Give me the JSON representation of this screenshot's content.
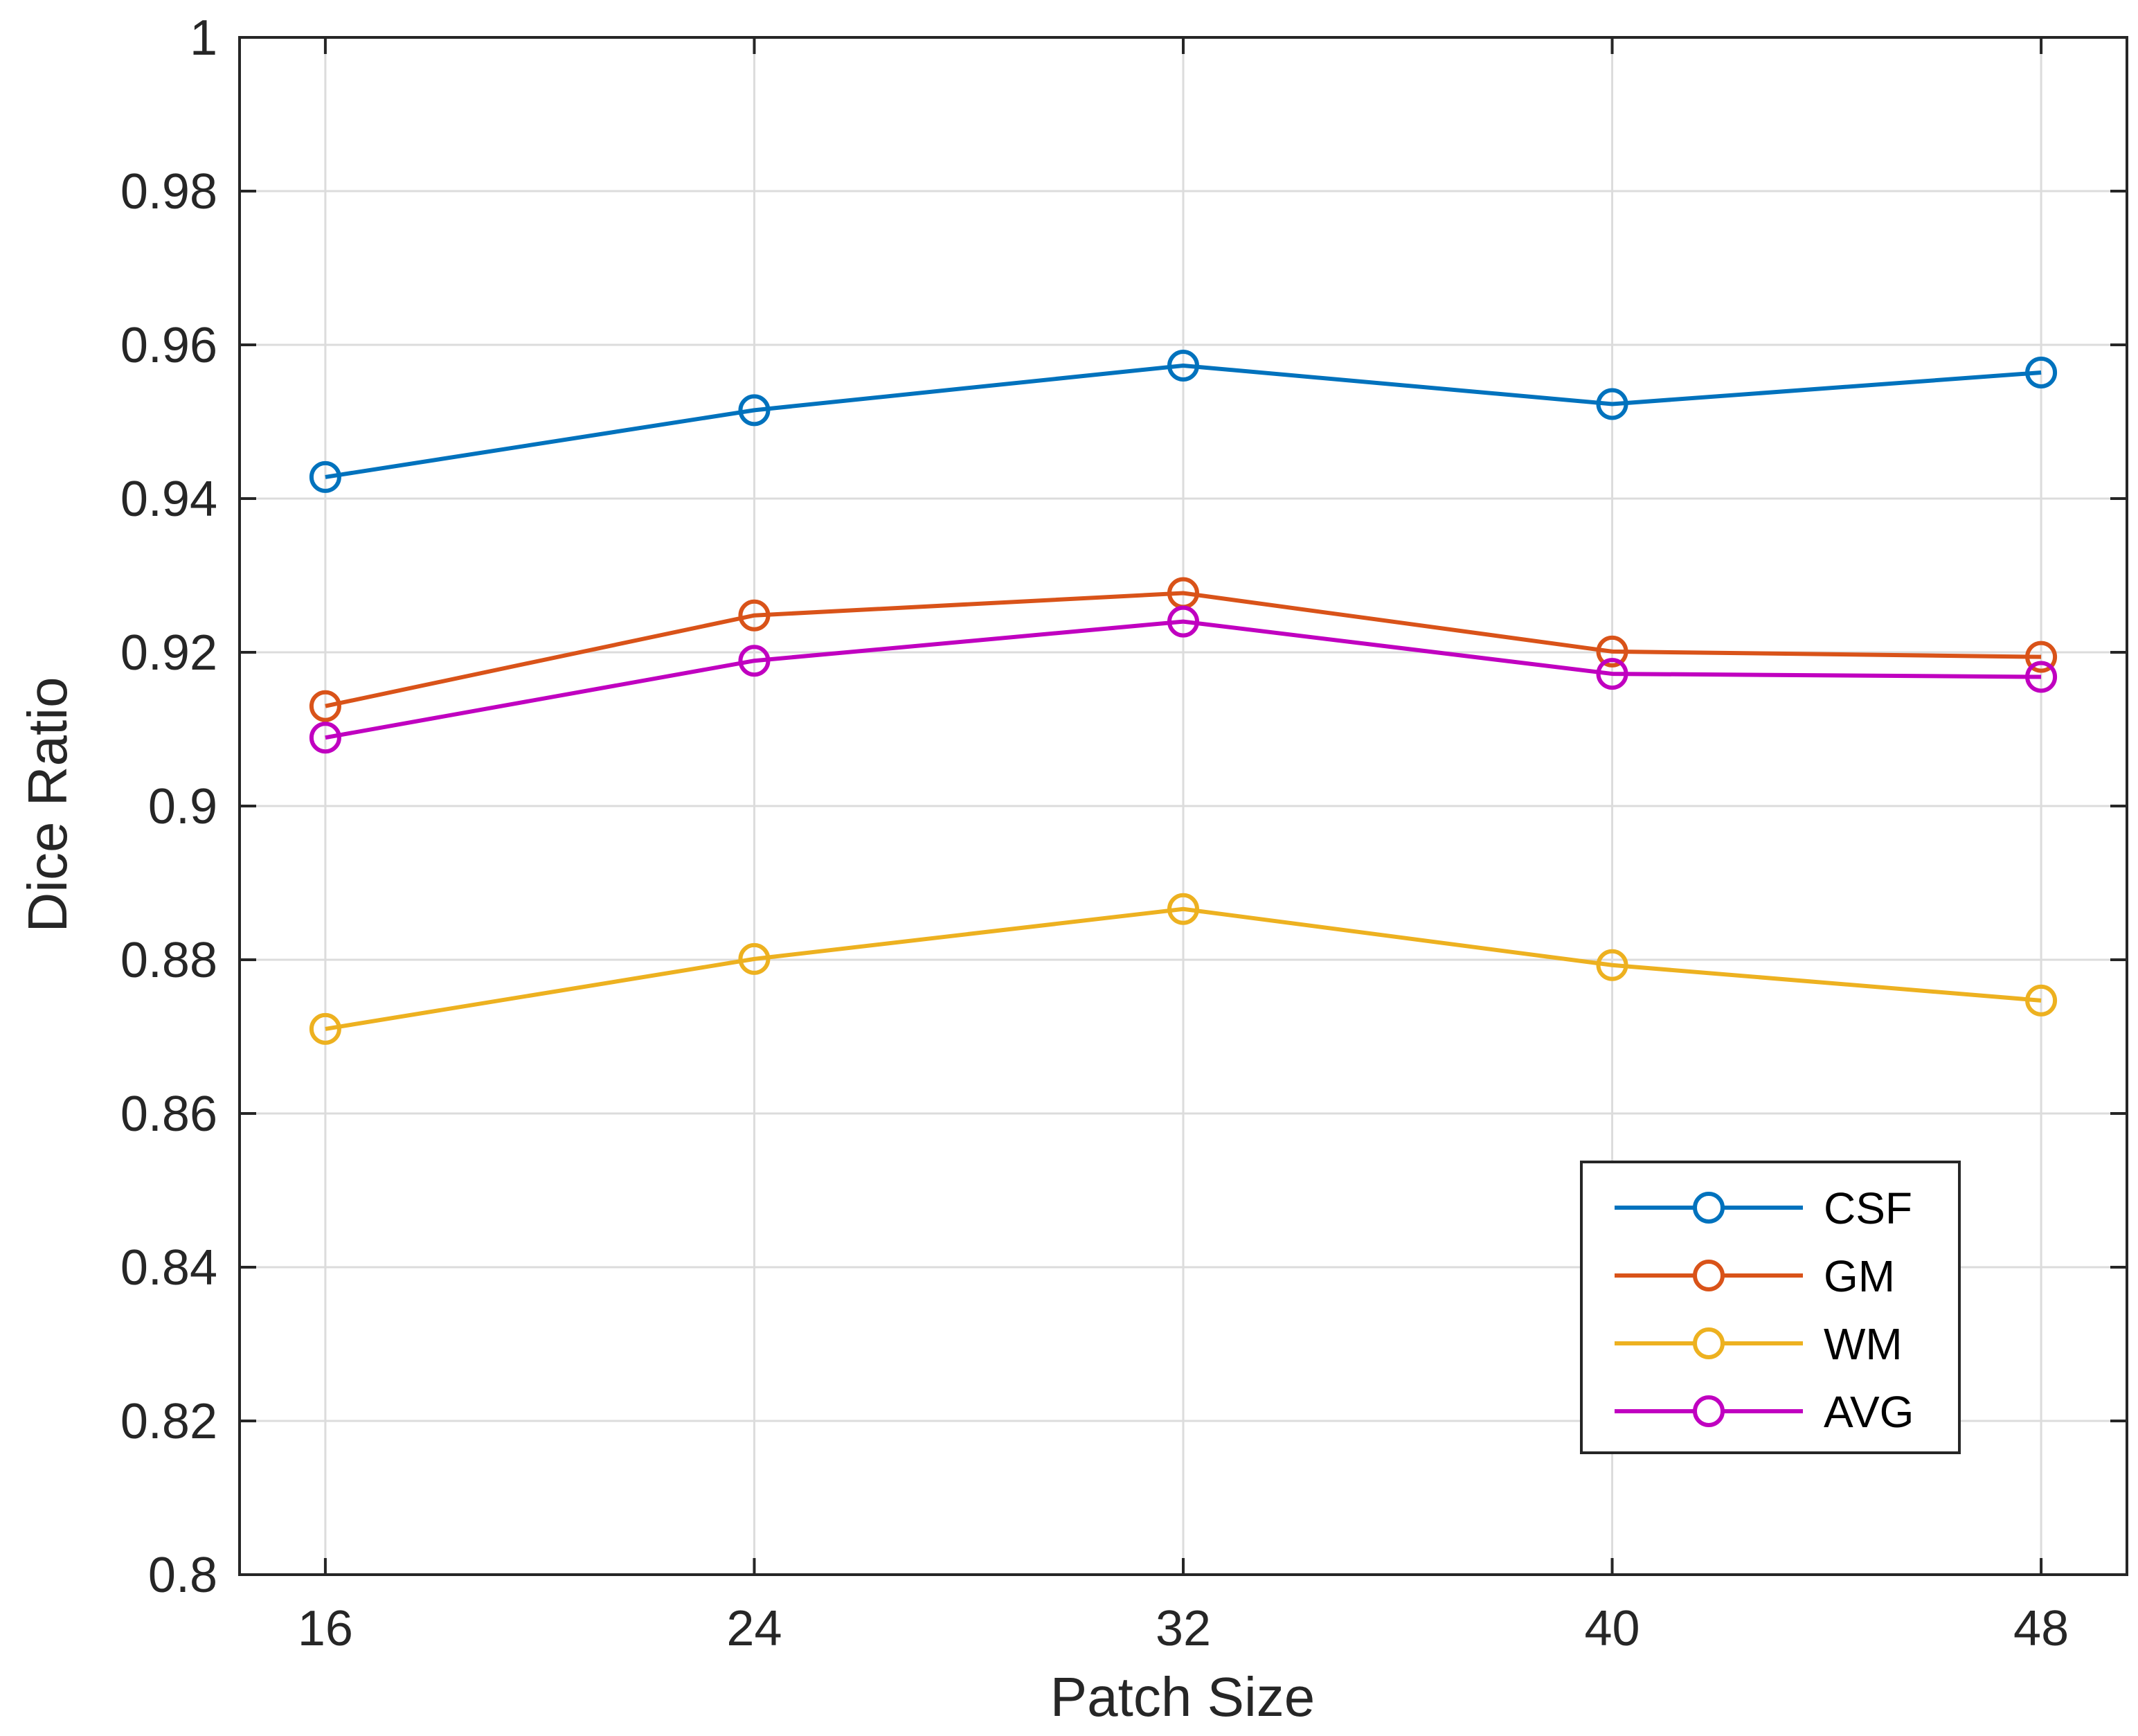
{
  "chart_data": {
    "type": "line",
    "title": "",
    "xlabel": "Patch Size",
    "ylabel": "Dice Ratio",
    "x": [
      16,
      24,
      32,
      40,
      48
    ],
    "x_tick_labels": [
      "16",
      "24",
      "32",
      "40",
      "48"
    ],
    "xlim": [
      14.4,
      49.6
    ],
    "ylim": [
      0.8,
      1.0
    ],
    "y_ticks": [
      0.8,
      0.82,
      0.84,
      0.86,
      0.88,
      0.9,
      0.92,
      0.94,
      0.96,
      0.98,
      1.0
    ],
    "y_tick_labels": [
      "0.8",
      "0.82",
      "0.84",
      "0.86",
      "0.88",
      "0.9",
      "0.92",
      "0.94",
      "0.96",
      "0.98",
      "1"
    ],
    "grid": true,
    "legend_position": "bottom-right",
    "marker": "circle",
    "series": [
      {
        "name": "CSF",
        "color": "#0072BD",
        "values": [
          0.9428,
          0.9515,
          0.9573,
          0.9523,
          0.9564
        ]
      },
      {
        "name": "GM",
        "color": "#D95319",
        "values": [
          0.913,
          0.9248,
          0.9277,
          0.9201,
          0.9194
        ]
      },
      {
        "name": "WM",
        "color": "#EDB120",
        "values": [
          0.871,
          0.8801,
          0.8866,
          0.8793,
          0.8747
        ]
      },
      {
        "name": "AVG",
        "color": "#C000C0",
        "values": [
          0.9089,
          0.9189,
          0.924,
          0.9172,
          0.9168
        ]
      }
    ]
  }
}
